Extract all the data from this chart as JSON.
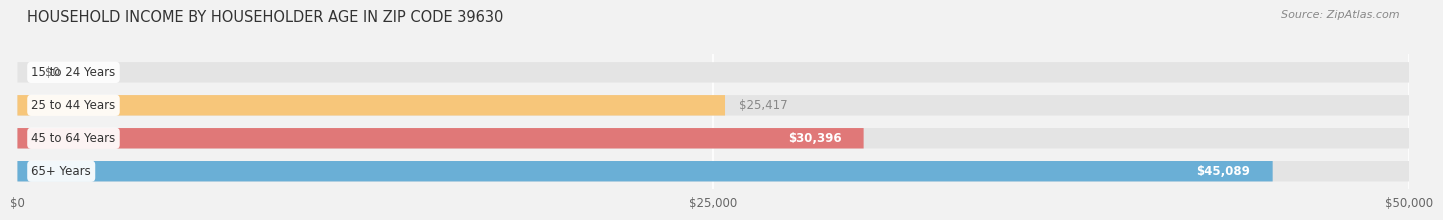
{
  "title": "HOUSEHOLD INCOME BY HOUSEHOLDER AGE IN ZIP CODE 39630",
  "source": "Source: ZipAtlas.com",
  "categories": [
    "15 to 24 Years",
    "25 to 44 Years",
    "45 to 64 Years",
    "65+ Years"
  ],
  "values": [
    0,
    25417,
    30396,
    45089
  ],
  "bar_colors": [
    "#f5a0b5",
    "#f7c67a",
    "#e07878",
    "#6aafd6"
  ],
  "value_label_colors": [
    "#666666",
    "#888888",
    "#ffffff",
    "#ffffff"
  ],
  "value_labels": [
    "$0",
    "$25,417",
    "$30,396",
    "$45,089"
  ],
  "value_label_inside": [
    false,
    false,
    true,
    true
  ],
  "xlim": [
    0,
    50000
  ],
  "xticks": [
    0,
    25000,
    50000
  ],
  "xticklabels": [
    "$0",
    "$25,000",
    "$50,000"
  ],
  "background_color": "#f2f2f2",
  "bar_bg_color": "#e4e4e4",
  "title_fontsize": 10.5,
  "source_fontsize": 8,
  "value_fontsize": 8.5,
  "cat_fontsize": 8.5
}
